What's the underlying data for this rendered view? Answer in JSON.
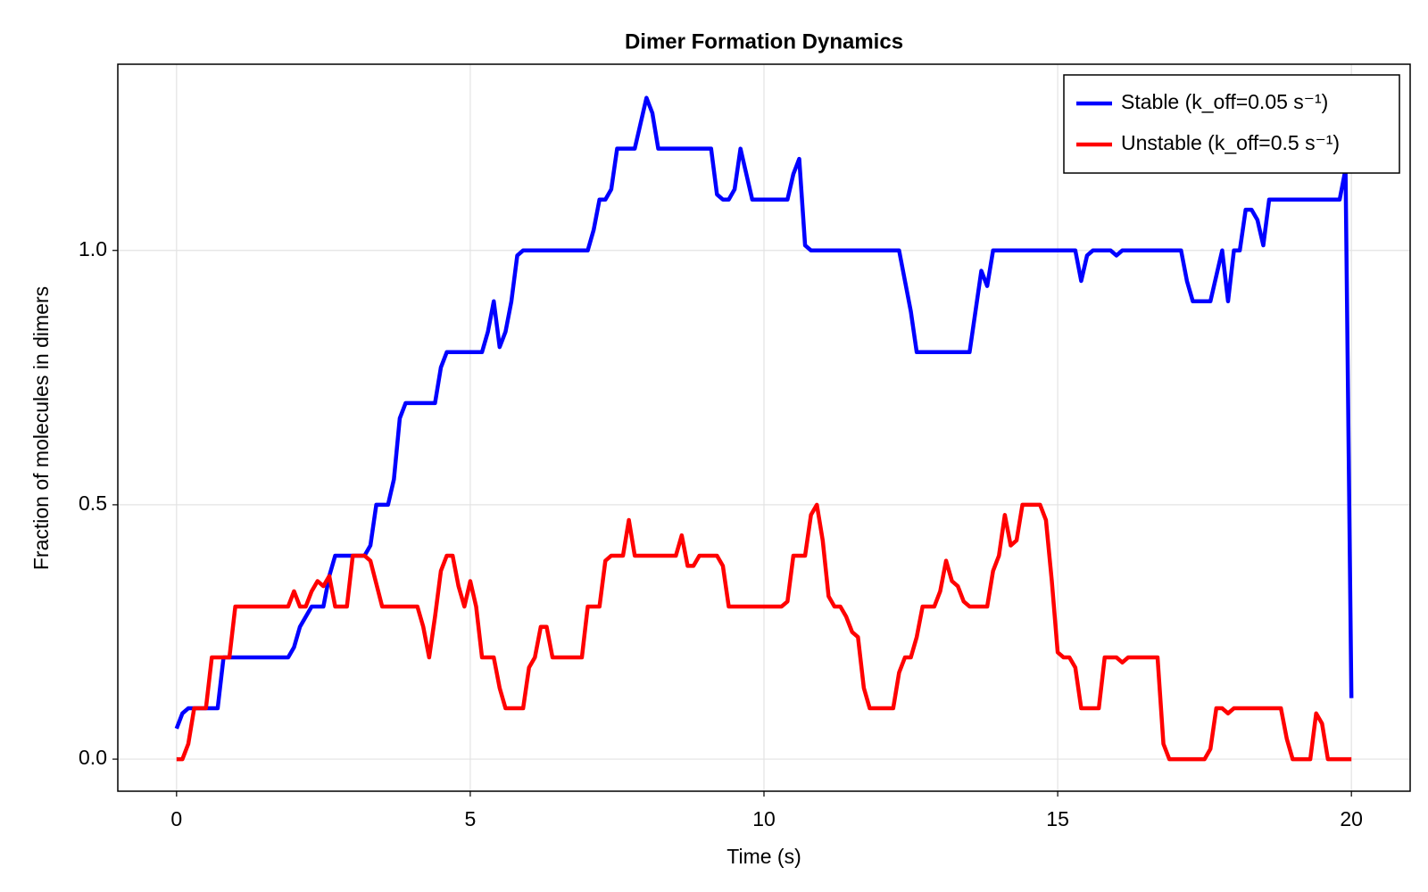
{
  "chart_data": {
    "type": "line",
    "title": "Dimer Formation Dynamics",
    "x_label": "Time (s)",
    "y_label": "Fraction of molecules in dimers",
    "xlim": [
      -1,
      21
    ],
    "ylim": [
      -0.063,
      1.366
    ],
    "xticks": [
      0,
      5,
      10,
      15,
      20
    ],
    "yticks": [
      {
        "value": 0,
        "label": "0.0"
      },
      0.5,
      {
        "value": 1,
        "label": "1.0"
      }
    ],
    "grid": true,
    "legend_position": "top-right",
    "series": [
      {
        "name": "Stable (k_off=0.05 s⁻¹)",
        "color": "#0000ff",
        "x": [
          0,
          0.1,
          0.2,
          0.7,
          0.8,
          1.9,
          2.0,
          2.1,
          2.3,
          2.5,
          2.6,
          2.7,
          3.2,
          3.3,
          3.4,
          3.6,
          3.7,
          3.8,
          3.9,
          4.4,
          4.5,
          4.6,
          5.2,
          5.3,
          5.4,
          5.5,
          5.6,
          5.7,
          5.8,
          5.9,
          7.0,
          7.1,
          7.2,
          7.3,
          7.4,
          7.5,
          7.8,
          8.0,
          8.1,
          8.2,
          9.1,
          9.2,
          9.3,
          9.4,
          9.5,
          9.6,
          9.8,
          10.4,
          10.5,
          10.6,
          10.7,
          10.8,
          12.3,
          12.5,
          12.6,
          13.5,
          13.6,
          13.7,
          13.8,
          13.9,
          15.3,
          15.4,
          15.5,
          15.6,
          15.9,
          16.0,
          16.1,
          17.1,
          17.2,
          17.3,
          17.6,
          17.8,
          17.9,
          18.0,
          18.1,
          18.2,
          18.3,
          18.4,
          18.5,
          18.6,
          19.8,
          19.9,
          20.0
        ],
        "values": [
          0.06,
          0.09,
          0.1,
          0.1,
          0.2,
          0.2,
          0.22,
          0.26,
          0.3,
          0.3,
          0.36,
          0.4,
          0.4,
          0.42,
          0.5,
          0.5,
          0.55,
          0.67,
          0.7,
          0.7,
          0.77,
          0.8,
          0.8,
          0.84,
          0.9,
          0.81,
          0.84,
          0.9,
          0.99,
          1.0,
          1.0,
          1.04,
          1.1,
          1.1,
          1.12,
          1.2,
          1.2,
          1.3,
          1.27,
          1.2,
          1.2,
          1.11,
          1.1,
          1.1,
          1.12,
          1.2,
          1.1,
          1.1,
          1.15,
          1.18,
          1.01,
          1.0,
          1.0,
          0.88,
          0.8,
          0.8,
          0.88,
          0.96,
          0.93,
          1.0,
          1.0,
          0.94,
          0.99,
          1.0,
          1.0,
          0.99,
          1.0,
          1.0,
          0.94,
          0.9,
          0.9,
          1.0,
          0.9,
          1.0,
          1.0,
          1.08,
          1.08,
          1.06,
          1.01,
          1.1,
          1.1,
          1.16,
          0.12
        ]
      },
      {
        "name": "Unstable (k_off=0.5 s⁻¹)",
        "color": "#ff0000",
        "x": [
          0,
          0.1,
          0.2,
          0.3,
          0.5,
          0.6,
          0.9,
          1.0,
          1.9,
          2.0,
          2.1,
          2.2,
          2.3,
          2.4,
          2.5,
          2.6,
          2.7,
          2.9,
          3.0,
          3.2,
          3.3,
          3.5,
          4.1,
          4.2,
          4.3,
          4.4,
          4.5,
          4.6,
          4.7,
          4.8,
          4.9,
          5.0,
          5.1,
          5.2,
          5.4,
          5.5,
          5.6,
          5.9,
          6.0,
          6.1,
          6.2,
          6.3,
          6.4,
          6.9,
          7.0,
          7.2,
          7.3,
          7.4,
          7.6,
          7.7,
          7.8,
          8.5,
          8.6,
          8.7,
          8.8,
          8.9,
          9.2,
          9.3,
          9.4,
          10.3,
          10.4,
          10.5,
          10.7,
          10.8,
          10.9,
          11.0,
          11.1,
          11.2,
          11.3,
          11.4,
          11.5,
          11.6,
          11.7,
          11.8,
          12.2,
          12.3,
          12.4,
          12.5,
          12.6,
          12.7,
          12.9,
          13.0,
          13.1,
          13.2,
          13.3,
          13.4,
          13.5,
          13.8,
          13.9,
          14.0,
          14.1,
          14.2,
          14.3,
          14.4,
          14.7,
          14.8,
          14.9,
          15.0,
          15.1,
          15.2,
          15.3,
          15.4,
          15.7,
          15.8,
          16.0,
          16.1,
          16.2,
          16.7,
          16.8,
          16.9,
          17.5,
          17.6,
          17.7,
          17.8,
          17.9,
          18.0,
          18.8,
          18.9,
          19.0,
          19.3,
          19.4,
          19.5,
          19.6,
          20.0
        ],
        "values": [
          0,
          0,
          0.03,
          0.1,
          0.1,
          0.2,
          0.2,
          0.3,
          0.3,
          0.33,
          0.3,
          0.3,
          0.33,
          0.35,
          0.34,
          0.36,
          0.3,
          0.3,
          0.4,
          0.4,
          0.39,
          0.3,
          0.3,
          0.26,
          0.2,
          0.28,
          0.37,
          0.4,
          0.4,
          0.34,
          0.3,
          0.35,
          0.3,
          0.2,
          0.2,
          0.14,
          0.1,
          0.1,
          0.18,
          0.2,
          0.26,
          0.26,
          0.2,
          0.2,
          0.3,
          0.3,
          0.39,
          0.4,
          0.4,
          0.47,
          0.4,
          0.4,
          0.44,
          0.38,
          0.38,
          0.4,
          0.4,
          0.38,
          0.3,
          0.3,
          0.31,
          0.4,
          0.4,
          0.48,
          0.5,
          0.43,
          0.32,
          0.3,
          0.3,
          0.28,
          0.25,
          0.24,
          0.14,
          0.1,
          0.1,
          0.17,
          0.2,
          0.2,
          0.24,
          0.3,
          0.3,
          0.33,
          0.39,
          0.35,
          0.34,
          0.31,
          0.3,
          0.3,
          0.37,
          0.4,
          0.48,
          0.42,
          0.43,
          0.5,
          0.5,
          0.47,
          0.35,
          0.21,
          0.2,
          0.2,
          0.18,
          0.1,
          0.1,
          0.2,
          0.2,
          0.19,
          0.2,
          0.2,
          0.03,
          0,
          0,
          0.02,
          0.1,
          0.1,
          0.09,
          0.1,
          0.1,
          0.04,
          0,
          0,
          0.09,
          0.07,
          0,
          0
        ]
      }
    ]
  }
}
